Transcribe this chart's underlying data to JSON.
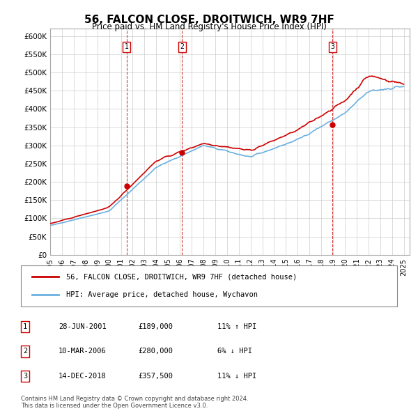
{
  "title": "56, FALCON CLOSE, DROITWICH, WR9 7HF",
  "subtitle": "Price paid vs. HM Land Registry's House Price Index (HPI)",
  "ylabel_ticks": [
    "£0",
    "£50K",
    "£100K",
    "£150K",
    "£200K",
    "£250K",
    "£300K",
    "£350K",
    "£400K",
    "£450K",
    "£500K",
    "£550K",
    "£600K"
  ],
  "ytick_values": [
    0,
    50000,
    100000,
    150000,
    200000,
    250000,
    300000,
    350000,
    400000,
    450000,
    500000,
    550000,
    600000
  ],
  "ylim": [
    0,
    620000
  ],
  "xlim_start": 1995.0,
  "xlim_end": 2025.5,
  "sale_dates": [
    2001.49,
    2006.19,
    2018.96
  ],
  "sale_prices": [
    189000,
    280000,
    357500
  ],
  "sale_labels": [
    "1",
    "2",
    "3"
  ],
  "hpi_line_color": "#6ab0e0",
  "price_line_color": "#cc0000",
  "sale_vline_color": "#cc0000",
  "sale_marker_color": "#cc0000",
  "background_color": "#ffffff",
  "grid_color": "#cccccc",
  "legend_entries": [
    "56, FALCON CLOSE, DROITWICH, WR9 7HF (detached house)",
    "HPI: Average price, detached house, Wychavon"
  ],
  "table_rows": [
    [
      "1",
      "28-JUN-2001",
      "£189,000",
      "11% ↑ HPI"
    ],
    [
      "2",
      "10-MAR-2006",
      "£280,000",
      "6% ↓ HPI"
    ],
    [
      "3",
      "14-DEC-2018",
      "£357,500",
      "11% ↓ HPI"
    ]
  ],
  "footer": "Contains HM Land Registry data © Crown copyright and database right 2024.\nThis data is licensed under the Open Government Licence v3.0.",
  "xtick_years": [
    1995,
    1996,
    1997,
    1998,
    1999,
    2000,
    2001,
    2002,
    2003,
    2004,
    2005,
    2006,
    2007,
    2008,
    2009,
    2010,
    2011,
    2012,
    2013,
    2014,
    2015,
    2016,
    2017,
    2018,
    2019,
    2020,
    2021,
    2022,
    2023,
    2024,
    2025
  ]
}
